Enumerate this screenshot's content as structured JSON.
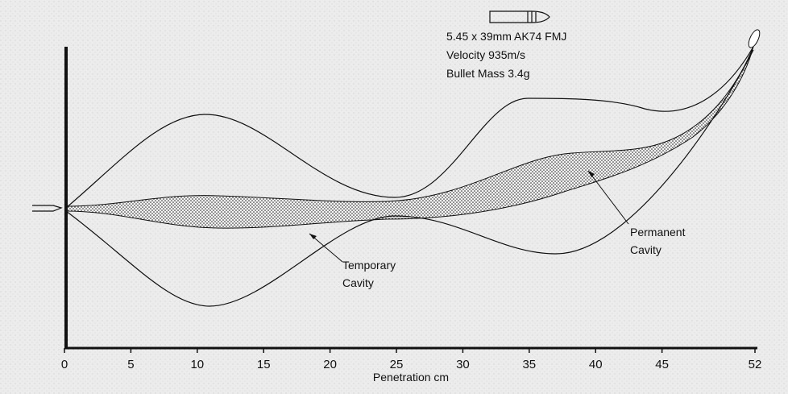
{
  "bullet": {
    "lines": [
      "5.45 x 39mm   AK74 FMJ",
      "Velocity 935m/s",
      "Bullet Mass 3.4g"
    ]
  },
  "labels": {
    "temporary": [
      "Temporary",
      "Cavity"
    ],
    "permanent": [
      "Permanent",
      "Cavity"
    ]
  },
  "axis": {
    "label": "Penetration cm",
    "ticks": [
      0,
      5,
      10,
      15,
      20,
      25,
      30,
      35,
      40,
      45,
      52
    ]
  }
}
